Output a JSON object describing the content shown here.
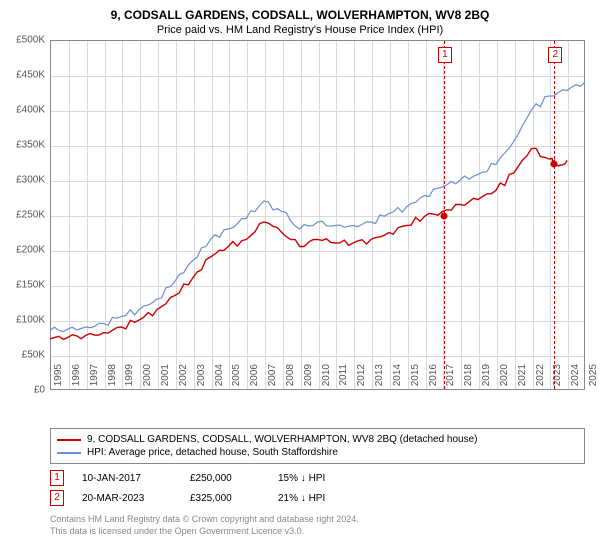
{
  "title": "9, CODSALL GARDENS, CODSALL, WOLVERHAMPTON, WV8 2BQ",
  "subtitle": "Price paid vs. HM Land Registry's House Price Index (HPI)",
  "chart": {
    "type": "line",
    "background_color": "#ffffff",
    "grid_color": "#d9d9d9",
    "border_color": "#888888",
    "ylim": [
      0,
      500000
    ],
    "ytick_step": 50000,
    "ytick_prefix": "£",
    "ytick_labels": [
      "£0",
      "£50K",
      "£100K",
      "£150K",
      "£200K",
      "£250K",
      "£300K",
      "£350K",
      "£400K",
      "£450K",
      "£500K"
    ],
    "xlim": [
      1995,
      2025
    ],
    "xticks": [
      1995,
      1996,
      1997,
      1998,
      1999,
      2000,
      2001,
      2002,
      2003,
      2004,
      2005,
      2006,
      2007,
      2008,
      2009,
      2010,
      2011,
      2012,
      2013,
      2014,
      2015,
      2016,
      2017,
      2018,
      2019,
      2020,
      2021,
      2022,
      2023,
      2024,
      2025
    ],
    "series": [
      {
        "name": "property_price",
        "label": "9, CODSALL GARDENS, CODSALL, WOLVERHAMPTON, WV8 2BQ (detached house)",
        "color": "#cc0000",
        "line_width": 1.4,
        "data": [
          [
            1995,
            73000
          ],
          [
            1996,
            75000
          ],
          [
            1997,
            78000
          ],
          [
            1998,
            82000
          ],
          [
            1999,
            90000
          ],
          [
            2000,
            100000
          ],
          [
            2001,
            115000
          ],
          [
            2002,
            135000
          ],
          [
            2003,
            160000
          ],
          [
            2004,
            190000
          ],
          [
            2005,
            205000
          ],
          [
            2006,
            215000
          ],
          [
            2007,
            240000
          ],
          [
            2008,
            225000
          ],
          [
            2009,
            205000
          ],
          [
            2010,
            215000
          ],
          [
            2011,
            210000
          ],
          [
            2012,
            210000
          ],
          [
            2013,
            215000
          ],
          [
            2014,
            225000
          ],
          [
            2015,
            235000
          ],
          [
            2016,
            248000
          ],
          [
            2017,
            255000
          ],
          [
            2018,
            265000
          ],
          [
            2019,
            272000
          ],
          [
            2020,
            285000
          ],
          [
            2021,
            310000
          ],
          [
            2022,
            345000
          ],
          [
            2023,
            330000
          ],
          [
            2023.2,
            325000
          ],
          [
            2023.5,
            320000
          ],
          [
            2024,
            328000
          ]
        ]
      },
      {
        "name": "hpi",
        "label": "HPI: Average price, detached house, South Staffordshire",
        "color": "#6a8fd4",
        "line_width": 1.2,
        "data": [
          [
            1995,
            85000
          ],
          [
            1996,
            87000
          ],
          [
            1997,
            90000
          ],
          [
            1998,
            95000
          ],
          [
            1999,
            105000
          ],
          [
            2000,
            115000
          ],
          [
            2001,
            130000
          ],
          [
            2002,
            155000
          ],
          [
            2003,
            185000
          ],
          [
            2004,
            215000
          ],
          [
            2005,
            230000
          ],
          [
            2006,
            245000
          ],
          [
            2007,
            270000
          ],
          [
            2008,
            255000
          ],
          [
            2009,
            230000
          ],
          [
            2010,
            240000
          ],
          [
            2011,
            235000
          ],
          [
            2012,
            235000
          ],
          [
            2013,
            240000
          ],
          [
            2014,
            252000
          ],
          [
            2015,
            262000
          ],
          [
            2016,
            278000
          ],
          [
            2017,
            290000
          ],
          [
            2018,
            300000
          ],
          [
            2019,
            308000
          ],
          [
            2020,
            322000
          ],
          [
            2021,
            355000
          ],
          [
            2022,
            400000
          ],
          [
            2023,
            420000
          ],
          [
            2024,
            428000
          ],
          [
            2025,
            440000
          ]
        ]
      }
    ],
    "markers": [
      {
        "id": "1",
        "year": 2017.03,
        "value": 250000
      },
      {
        "id": "2",
        "year": 2023.22,
        "value": 325000
      }
    ]
  },
  "legend": {
    "items": [
      {
        "color": "#cc0000",
        "label": "9, CODSALL GARDENS, CODSALL, WOLVERHAMPTON, WV8 2BQ (detached house)"
      },
      {
        "color": "#6a8fd4",
        "label": "HPI: Average price, detached house, South Staffordshire"
      }
    ]
  },
  "transactions": [
    {
      "id": "1",
      "date": "10-JAN-2017",
      "price": "£250,000",
      "pct": "15% ↓ HPI"
    },
    {
      "id": "2",
      "date": "20-MAR-2023",
      "price": "£325,000",
      "pct": "21% ↓ HPI"
    }
  ],
  "footer": {
    "line1": "Contains HM Land Registry data © Crown copyright and database right 2024.",
    "line2": "This data is licensed under the Open Government Licence v3.0."
  }
}
